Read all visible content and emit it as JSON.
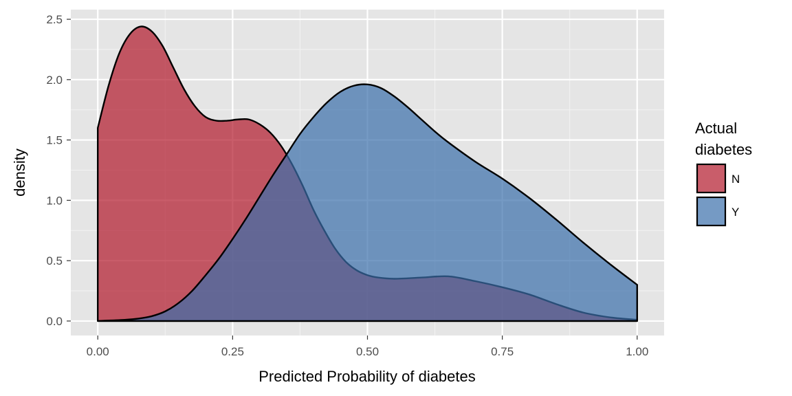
{
  "chart_data": {
    "type": "area",
    "xlabel": "Predicted Probability of diabetes",
    "ylabel": "density",
    "xlim": [
      -0.05,
      1.05
    ],
    "ylim": [
      -0.12,
      2.58
    ],
    "x_ticks": [
      0.0,
      0.25,
      0.5,
      0.75,
      1.0
    ],
    "x_tick_labels": [
      "0.00",
      "0.25",
      "0.50",
      "0.75",
      "1.00"
    ],
    "y_ticks": [
      0.0,
      0.5,
      1.0,
      1.5,
      2.0,
      2.5
    ],
    "y_tick_labels": [
      "0.0",
      "0.5",
      "1.0",
      "1.5",
      "2.0",
      "2.5"
    ],
    "grid": true,
    "panel_background": "#e5e5e5",
    "legend": {
      "title_lines": [
        "Actual",
        "diabetes"
      ],
      "position": "right"
    },
    "series": [
      {
        "name": "N",
        "color": "#b2182b",
        "opacity": 0.7,
        "x": [
          0.0,
          0.02,
          0.04,
          0.06,
          0.08,
          0.1,
          0.12,
          0.14,
          0.16,
          0.18,
          0.2,
          0.22,
          0.24,
          0.26,
          0.28,
          0.3,
          0.32,
          0.34,
          0.36,
          0.38,
          0.4,
          0.42,
          0.44,
          0.46,
          0.48,
          0.5,
          0.52,
          0.55,
          0.6,
          0.65,
          0.7,
          0.75,
          0.8,
          0.85,
          0.9,
          0.95,
          1.0
        ],
        "y": [
          1.6,
          1.95,
          2.22,
          2.38,
          2.44,
          2.4,
          2.28,
          2.1,
          1.92,
          1.78,
          1.69,
          1.66,
          1.66,
          1.67,
          1.67,
          1.63,
          1.56,
          1.45,
          1.3,
          1.12,
          0.92,
          0.75,
          0.6,
          0.49,
          0.42,
          0.38,
          0.36,
          0.35,
          0.36,
          0.37,
          0.33,
          0.28,
          0.22,
          0.14,
          0.07,
          0.03,
          0.01
        ]
      },
      {
        "name": "Y",
        "color": "#3a6fab",
        "opacity": 0.7,
        "x": [
          0.0,
          0.025,
          0.05,
          0.075,
          0.1,
          0.125,
          0.15,
          0.175,
          0.2,
          0.225,
          0.25,
          0.275,
          0.3,
          0.325,
          0.35,
          0.375,
          0.4,
          0.425,
          0.45,
          0.475,
          0.5,
          0.525,
          0.55,
          0.575,
          0.6,
          0.625,
          0.65,
          0.7,
          0.75,
          0.8,
          0.85,
          0.9,
          0.95,
          1.0
        ],
        "y": [
          0.0,
          0.005,
          0.01,
          0.02,
          0.04,
          0.08,
          0.15,
          0.25,
          0.38,
          0.52,
          0.68,
          0.85,
          1.03,
          1.21,
          1.38,
          1.55,
          1.69,
          1.81,
          1.9,
          1.95,
          1.96,
          1.93,
          1.86,
          1.77,
          1.67,
          1.57,
          1.48,
          1.32,
          1.18,
          1.02,
          0.84,
          0.65,
          0.47,
          0.3
        ]
      }
    ]
  }
}
